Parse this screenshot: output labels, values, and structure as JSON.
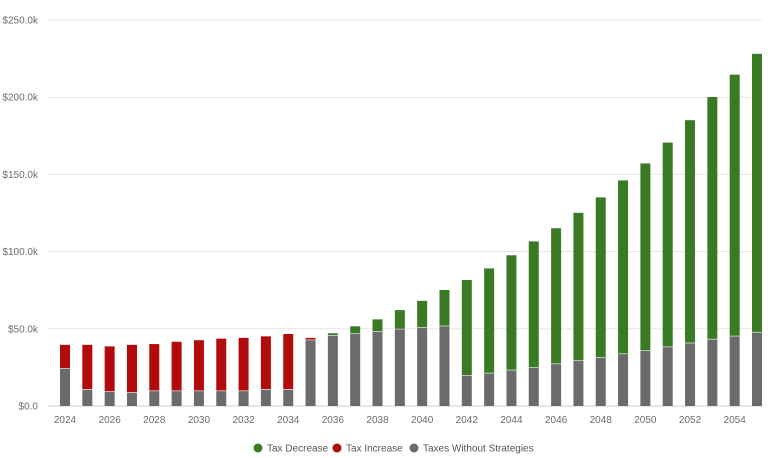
{
  "chart_data": {
    "type": "bar",
    "stacked": true,
    "x": [
      2024,
      2025,
      2026,
      2027,
      2028,
      2029,
      2030,
      2031,
      2032,
      2033,
      2034,
      2035,
      2036,
      2037,
      2038,
      2039,
      2040,
      2041,
      2042,
      2043,
      2044,
      2045,
      2046,
      2047,
      2048,
      2049,
      2050,
      2051,
      2052,
      2053,
      2054,
      2055
    ],
    "x_tick_labels": [
      "2024",
      "2026",
      "2028",
      "2030",
      "2032",
      "2034",
      "2036",
      "2038",
      "2040",
      "2042",
      "2044",
      "2046",
      "2048",
      "2050",
      "2052",
      "2054"
    ],
    "y_tick_labels": [
      "$0.0",
      "$50.0k",
      "$100.0k",
      "$150.0k",
      "$200.0k",
      "$250.0k"
    ],
    "ylim": [
      0,
      250000
    ],
    "grid": "horizontal",
    "legend_position": "bottom-center",
    "series": [
      {
        "name": "Taxes Without Strategies",
        "color": "#6b6b6b",
        "values": [
          24500,
          11000,
          9500,
          9000,
          10000,
          10000,
          10000,
          10000,
          10000,
          11000,
          11000,
          43000,
          46000,
          47000,
          48500,
          50000,
          51000,
          52000,
          20000,
          21500,
          23500,
          25000,
          27500,
          29500,
          31500,
          34000,
          36000,
          38500,
          41000,
          43500,
          45500,
          48000
        ]
      },
      {
        "name": "Tax Increase",
        "color": "#b20b0b",
        "values": [
          15500,
          29000,
          29500,
          31000,
          30500,
          32000,
          33000,
          34000,
          34500,
          34500,
          36000,
          1500,
          0,
          0,
          0,
          0,
          0,
          0,
          0,
          0,
          0,
          0,
          0,
          0,
          0,
          0,
          0,
          0,
          0,
          0,
          0,
          0
        ]
      },
      {
        "name": "Tax Decrease",
        "color": "#3a7a25",
        "values": [
          0,
          0,
          0,
          0,
          0,
          0,
          0,
          0,
          0,
          0,
          0,
          0,
          1500,
          5000,
          8000,
          12500,
          17500,
          23500,
          62000,
          68000,
          74500,
          82000,
          88000,
          96000,
          104000,
          112500,
          121500,
          132500,
          144500,
          157000,
          169500,
          180500
        ]
      }
    ],
    "legend": [
      {
        "label": "Tax Decrease",
        "color": "#3a7a25"
      },
      {
        "label": "Tax Increase",
        "color": "#b20b0b"
      },
      {
        "label": "Taxes Without Strategies",
        "color": "#6b6b6b"
      }
    ]
  }
}
